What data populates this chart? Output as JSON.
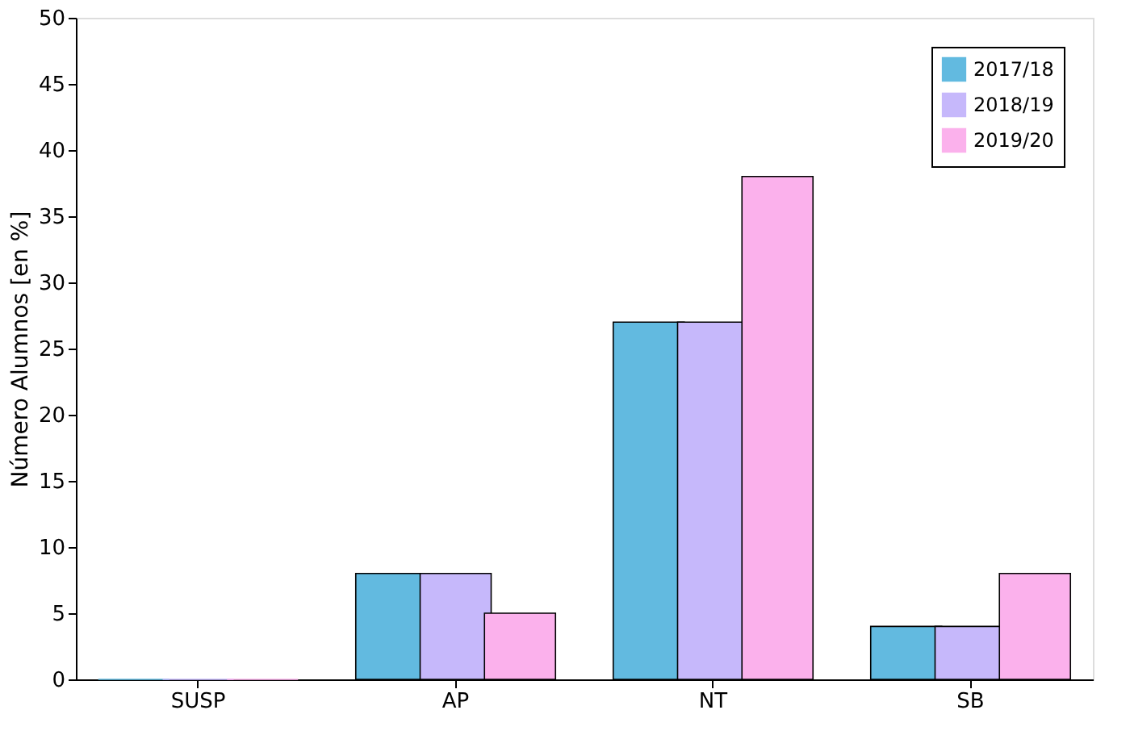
{
  "chart_data": {
    "type": "bar",
    "ylabel": "Número Alumnos [en %]",
    "categories": [
      "SUSP",
      "AP",
      "NT",
      "SB"
    ],
    "series": [
      {
        "name": "2017/18",
        "color": "#62bae0",
        "values": [
          0,
          8,
          27,
          4
        ]
      },
      {
        "name": "2018/19",
        "color": "#c6b8fb",
        "values": [
          0,
          8,
          27,
          4
        ]
      },
      {
        "name": "2019/20",
        "color": "#fbb1ec",
        "values": [
          0,
          5,
          38,
          8
        ]
      }
    ],
    "ylim": [
      0,
      50
    ],
    "yticks": [
      0,
      5,
      10,
      15,
      20,
      25,
      30,
      35,
      40,
      45,
      50
    ],
    "grid": false,
    "legend": "top right"
  }
}
